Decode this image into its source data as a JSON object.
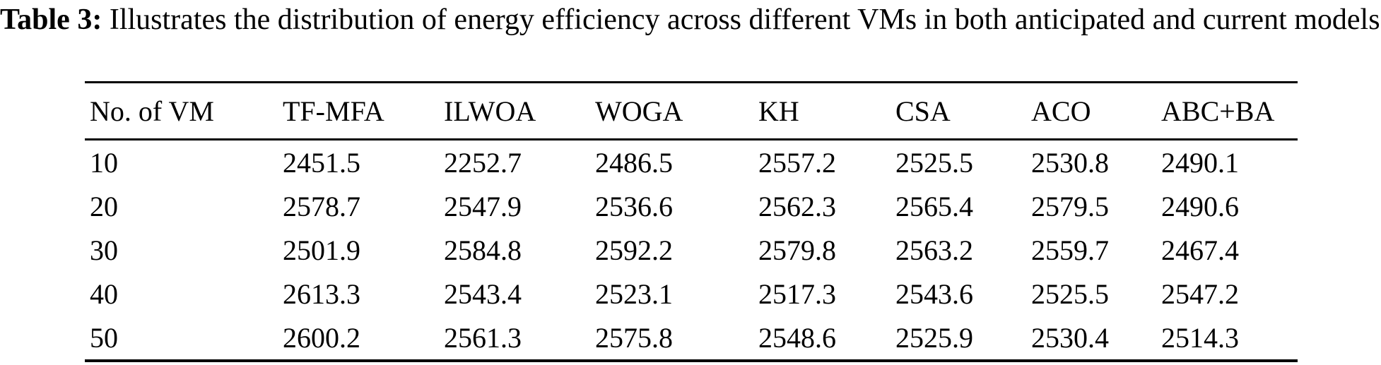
{
  "caption": {
    "label": "Table 3:",
    "text": "Illustrates the distribution of energy efficiency across different VMs in both anticipated and current models"
  },
  "table": {
    "columns": [
      "No. of VM",
      "TF-MFA",
      "ILWOA",
      "WOGA",
      "KH",
      "CSA",
      "ACO",
      "ABC+BA"
    ],
    "rows": [
      [
        "10",
        "2451.5",
        "2252.7",
        "2486.5",
        "2557.2",
        "2525.5",
        "2530.8",
        "2490.1"
      ],
      [
        "20",
        "2578.7",
        "2547.9",
        "2536.6",
        "2562.3",
        "2565.4",
        "2579.5",
        "2490.6"
      ],
      [
        "30",
        "2501.9",
        "2584.8",
        "2592.2",
        "2579.8",
        "2563.2",
        "2559.7",
        "2467.4"
      ],
      [
        "40",
        "2613.3",
        "2543.4",
        "2523.1",
        "2517.3",
        "2543.6",
        "2525.5",
        "2547.2"
      ],
      [
        "50",
        "2600.2",
        "2561.3",
        "2575.8",
        "2548.6",
        "2525.9",
        "2530.4",
        "2514.3"
      ]
    ]
  },
  "chart_data": {
    "type": "table",
    "title": "Table 3: Illustrates the distribution of energy efficiency across different VMs in both anticipated and current models",
    "categories": [
      10,
      20,
      30,
      40,
      50
    ],
    "xlabel": "No. of VM",
    "series": [
      {
        "name": "TF-MFA",
        "values": [
          2451.5,
          2578.7,
          2501.9,
          2613.3,
          2600.2
        ]
      },
      {
        "name": "ILWOA",
        "values": [
          2252.7,
          2547.9,
          2584.8,
          2543.4,
          2561.3
        ]
      },
      {
        "name": "WOGA",
        "values": [
          2486.5,
          2536.6,
          2592.2,
          2523.1,
          2575.8
        ]
      },
      {
        "name": "KH",
        "values": [
          2557.2,
          2562.3,
          2579.8,
          2517.3,
          2548.6
        ]
      },
      {
        "name": "CSA",
        "values": [
          2525.5,
          2565.4,
          2563.2,
          2543.6,
          2525.9
        ]
      },
      {
        "name": "ACO",
        "values": [
          2530.8,
          2579.5,
          2559.7,
          2525.5,
          2530.4
        ]
      },
      {
        "name": "ABC+BA",
        "values": [
          2490.1,
          2490.6,
          2467.4,
          2547.2,
          2514.3
        ]
      }
    ],
    "colors": {
      "text": "#000000",
      "background": "#ffffff",
      "rule": "#000000"
    }
  }
}
